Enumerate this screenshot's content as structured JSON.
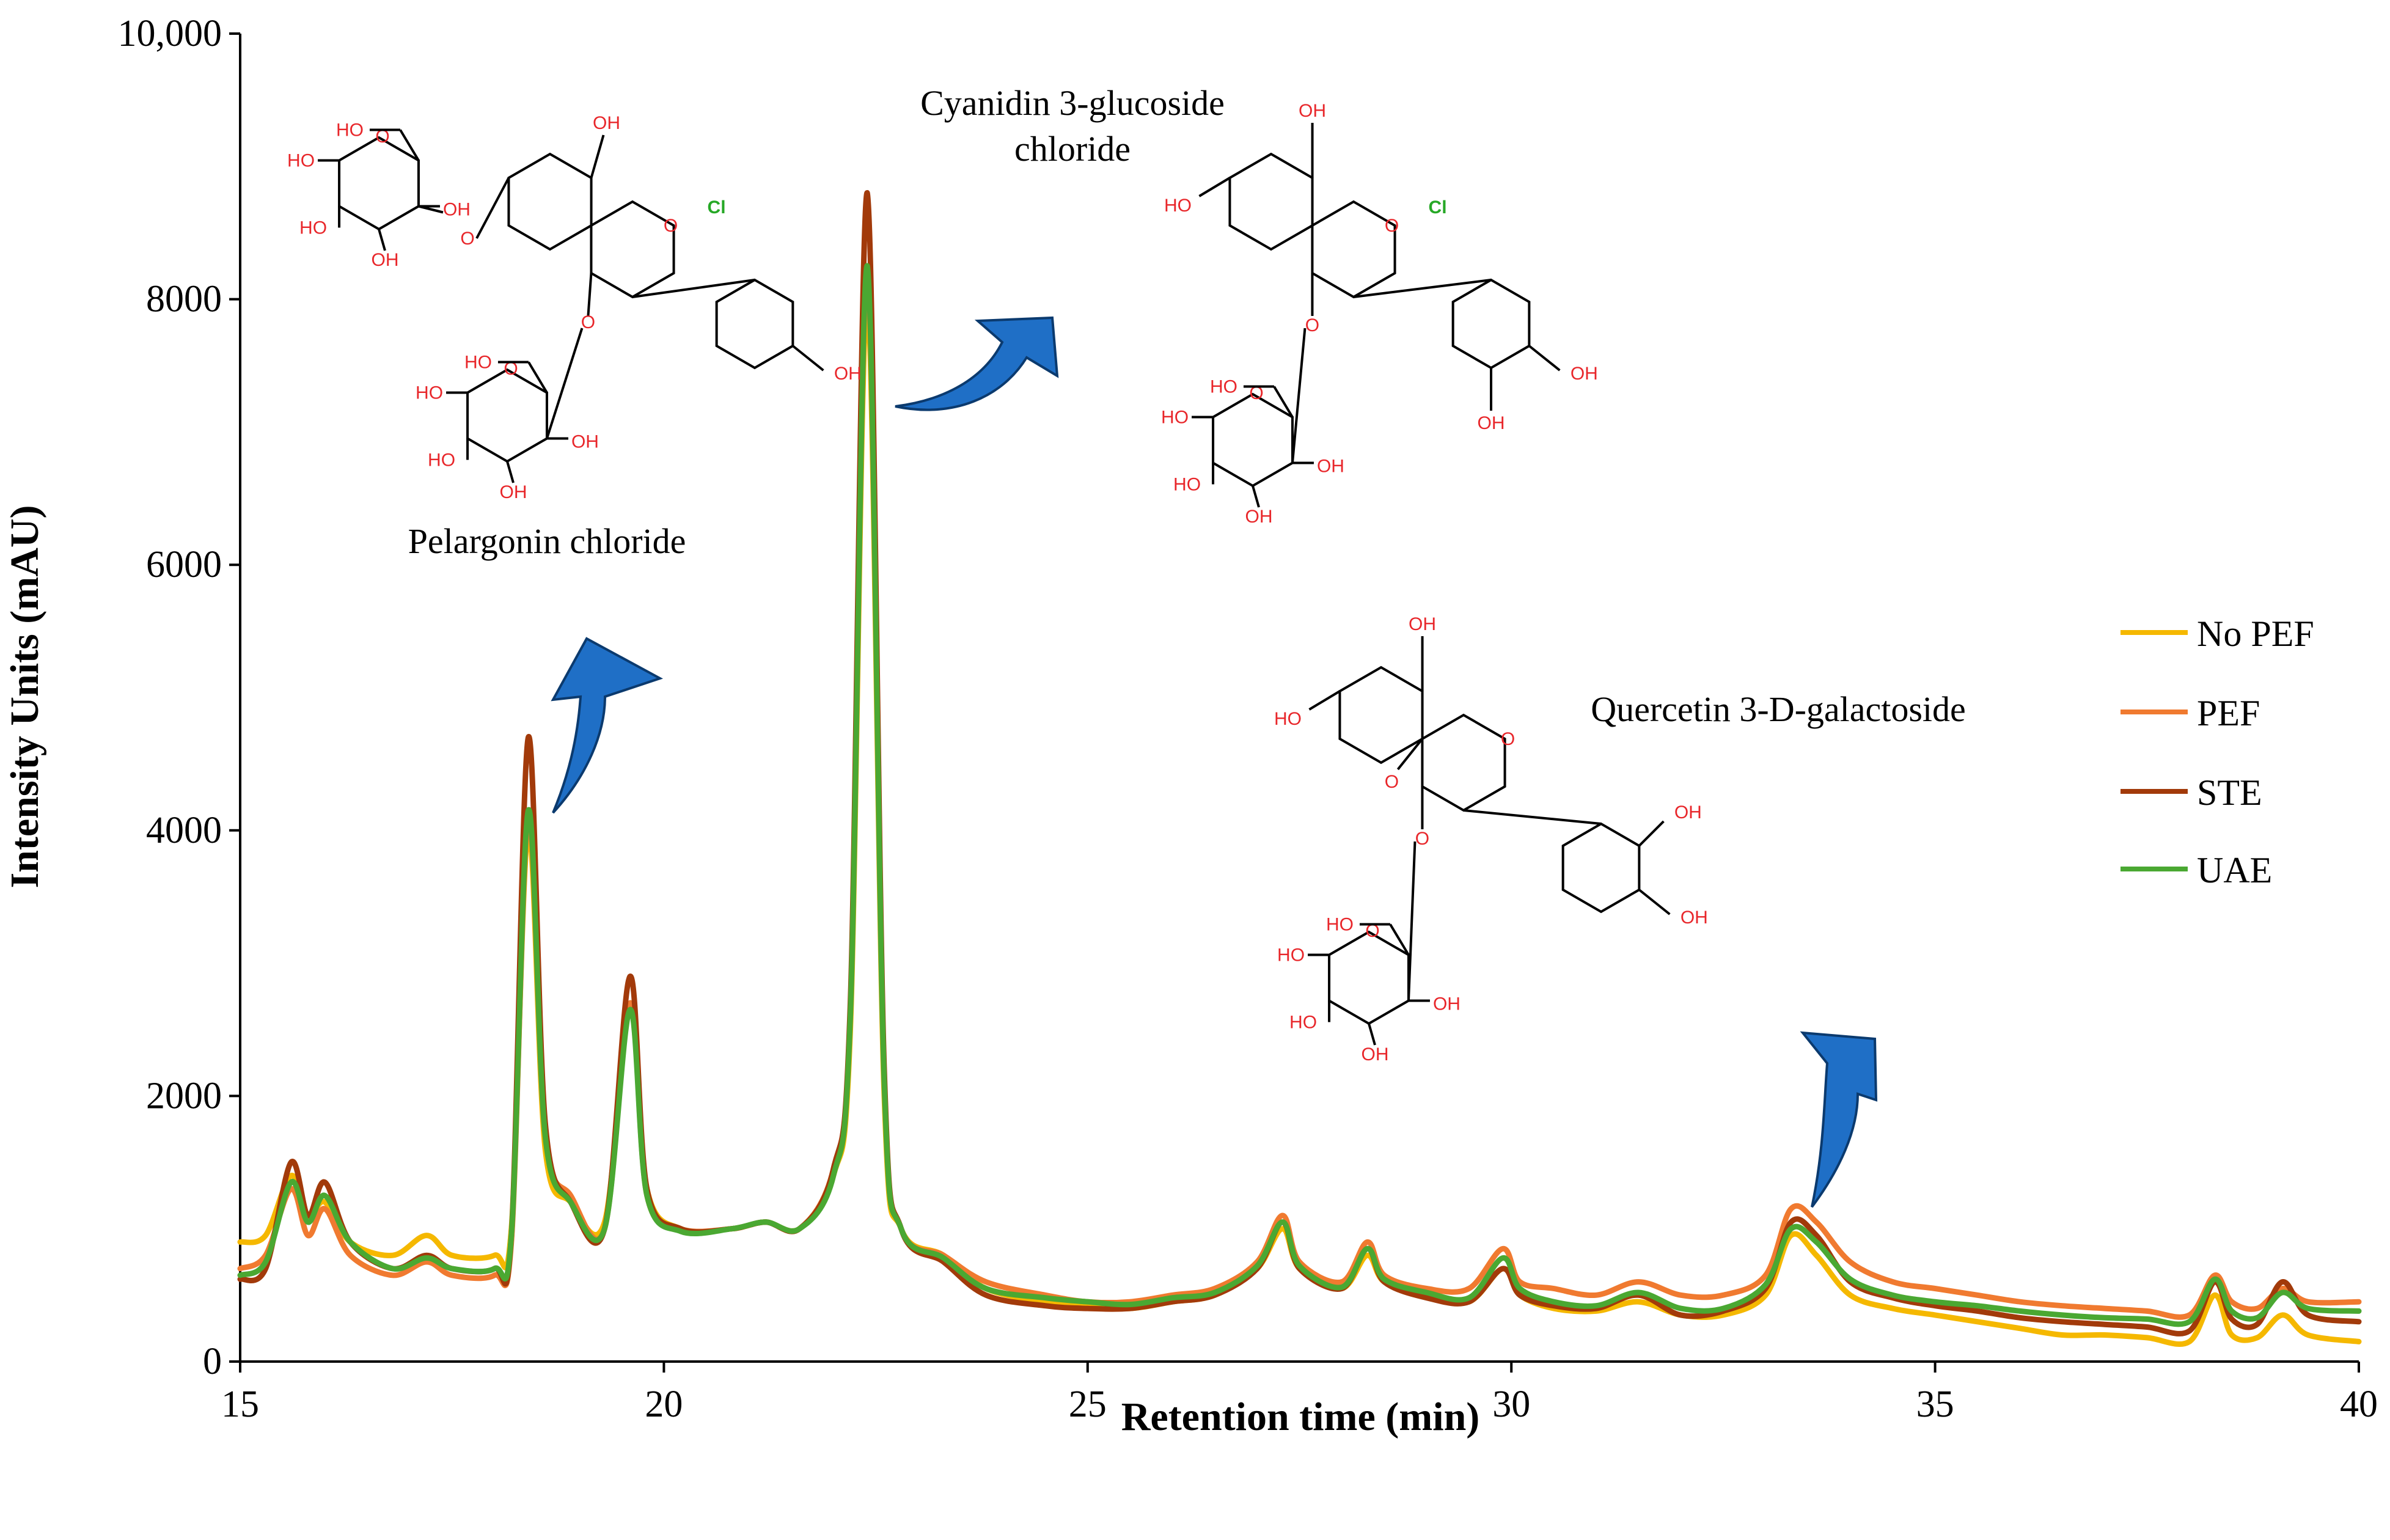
{
  "chart_data": {
    "type": "line",
    "xlabel": "Retention time (min)",
    "ylabel": "Intensity  Units (mAU)",
    "xlim": [
      15,
      40
    ],
    "ylim": [
      0,
      10000
    ],
    "x_ticks": [
      "15",
      "20",
      "25",
      "30",
      "35",
      "40"
    ],
    "y_ticks": [
      "0",
      "2000",
      "4000",
      "6000",
      "8000",
      "10,000"
    ],
    "legend_position": "right",
    "series": [
      {
        "name": "No PEF",
        "color": "#f5b800",
        "points": [
          [
            15,
            900
          ],
          [
            15.3,
            950
          ],
          [
            15.6,
            1400
          ],
          [
            15.8,
            1100
          ],
          [
            16,
            1200
          ],
          [
            16.3,
            900
          ],
          [
            16.8,
            800
          ],
          [
            17.2,
            950
          ],
          [
            17.5,
            800
          ],
          [
            18,
            800
          ],
          [
            18.2,
            1000
          ],
          [
            18.4,
            4000
          ],
          [
            18.6,
            1600
          ],
          [
            18.9,
            1200
          ],
          [
            19.3,
            1050
          ],
          [
            19.6,
            2700
          ],
          [
            19.8,
            1300
          ],
          [
            20.2,
            1000
          ],
          [
            20.8,
            1000
          ],
          [
            21.2,
            1050
          ],
          [
            21.6,
            1000
          ],
          [
            22,
            1400
          ],
          [
            22.2,
            2500
          ],
          [
            22.4,
            8000
          ],
          [
            22.6,
            2000
          ],
          [
            22.8,
            1000
          ],
          [
            23.3,
            800
          ],
          [
            23.8,
            550
          ],
          [
            24.5,
            450
          ],
          [
            25,
            420
          ],
          [
            25.5,
            400
          ],
          [
            26,
            450
          ],
          [
            26.5,
            500
          ],
          [
            27,
            700
          ],
          [
            27.3,
            1000
          ],
          [
            27.5,
            700
          ],
          [
            28,
            550
          ],
          [
            28.3,
            800
          ],
          [
            28.5,
            600
          ],
          [
            29,
            500
          ],
          [
            29.5,
            450
          ],
          [
            29.9,
            700
          ],
          [
            30.1,
            500
          ],
          [
            30.5,
            400
          ],
          [
            31,
            380
          ],
          [
            31.5,
            450
          ],
          [
            32,
            350
          ],
          [
            32.5,
            350
          ],
          [
            33,
            500
          ],
          [
            33.3,
            950
          ],
          [
            33.6,
            800
          ],
          [
            34,
            500
          ],
          [
            34.5,
            400
          ],
          [
            35,
            350
          ],
          [
            35.5,
            300
          ],
          [
            36,
            250
          ],
          [
            36.5,
            200
          ],
          [
            37,
            200
          ],
          [
            37.5,
            180
          ],
          [
            38,
            150
          ],
          [
            38.3,
            500
          ],
          [
            38.5,
            200
          ],
          [
            38.8,
            180
          ],
          [
            39.1,
            350
          ],
          [
            39.4,
            200
          ],
          [
            40,
            150
          ]
        ]
      },
      {
        "name": "PEF",
        "color": "#f07a30",
        "points": [
          [
            15,
            700
          ],
          [
            15.3,
            800
          ],
          [
            15.6,
            1300
          ],
          [
            15.8,
            950
          ],
          [
            16,
            1150
          ],
          [
            16.3,
            800
          ],
          [
            16.8,
            650
          ],
          [
            17.2,
            750
          ],
          [
            17.5,
            650
          ],
          [
            18,
            650
          ],
          [
            18.2,
            900
          ],
          [
            18.4,
            4100
          ],
          [
            18.6,
            1700
          ],
          [
            18.9,
            1250
          ],
          [
            19.3,
            1000
          ],
          [
            19.6,
            2700
          ],
          [
            19.8,
            1250
          ],
          [
            20.2,
            1000
          ],
          [
            20.8,
            1000
          ],
          [
            21.2,
            1050
          ],
          [
            21.6,
            1000
          ],
          [
            22,
            1450
          ],
          [
            22.2,
            2600
          ],
          [
            22.4,
            8200
          ],
          [
            22.6,
            2100
          ],
          [
            22.8,
            1000
          ],
          [
            23.3,
            800
          ],
          [
            23.8,
            600
          ],
          [
            24.5,
            500
          ],
          [
            25,
            450
          ],
          [
            25.5,
            450
          ],
          [
            26,
            500
          ],
          [
            26.5,
            550
          ],
          [
            27,
            750
          ],
          [
            27.3,
            1100
          ],
          [
            27.5,
            750
          ],
          [
            28,
            600
          ],
          [
            28.3,
            900
          ],
          [
            28.5,
            650
          ],
          [
            29,
            550
          ],
          [
            29.5,
            550
          ],
          [
            29.9,
            850
          ],
          [
            30.1,
            600
          ],
          [
            30.5,
            550
          ],
          [
            31,
            500
          ],
          [
            31.5,
            600
          ],
          [
            32,
            500
          ],
          [
            32.5,
            500
          ],
          [
            33,
            650
          ],
          [
            33.3,
            1150
          ],
          [
            33.6,
            1050
          ],
          [
            34,
            750
          ],
          [
            34.5,
            600
          ],
          [
            35,
            550
          ],
          [
            35.5,
            500
          ],
          [
            36,
            450
          ],
          [
            36.5,
            420
          ],
          [
            37,
            400
          ],
          [
            37.5,
            380
          ],
          [
            38,
            350
          ],
          [
            38.3,
            650
          ],
          [
            38.5,
            450
          ],
          [
            38.8,
            400
          ],
          [
            39.1,
            550
          ],
          [
            39.4,
            450
          ],
          [
            40,
            450
          ]
        ]
      },
      {
        "name": "STE",
        "color": "#a23a0a",
        "points": [
          [
            15,
            620
          ],
          [
            15.3,
            700
          ],
          [
            15.6,
            1500
          ],
          [
            15.8,
            1100
          ],
          [
            16,
            1350
          ],
          [
            16.3,
            900
          ],
          [
            16.8,
            700
          ],
          [
            17.2,
            800
          ],
          [
            17.5,
            700
          ],
          [
            18,
            700
          ],
          [
            18.2,
            950
          ],
          [
            18.4,
            4700
          ],
          [
            18.6,
            1800
          ],
          [
            18.9,
            1200
          ],
          [
            19.3,
            1000
          ],
          [
            19.6,
            2900
          ],
          [
            19.8,
            1300
          ],
          [
            20.2,
            1000
          ],
          [
            20.8,
            1000
          ],
          [
            21.2,
            1050
          ],
          [
            21.6,
            1000
          ],
          [
            22,
            1450
          ],
          [
            22.2,
            2700
          ],
          [
            22.4,
            8800
          ],
          [
            22.6,
            2200
          ],
          [
            22.8,
            1000
          ],
          [
            23.3,
            750
          ],
          [
            23.8,
            500
          ],
          [
            24.5,
            420
          ],
          [
            25,
            400
          ],
          [
            25.5,
            400
          ],
          [
            26,
            450
          ],
          [
            26.5,
            500
          ],
          [
            27,
            700
          ],
          [
            27.3,
            1050
          ],
          [
            27.5,
            700
          ],
          [
            28,
            550
          ],
          [
            28.3,
            850
          ],
          [
            28.5,
            600
          ],
          [
            29,
            480
          ],
          [
            29.5,
            450
          ],
          [
            29.9,
            700
          ],
          [
            30.1,
            500
          ],
          [
            30.5,
            420
          ],
          [
            31,
            400
          ],
          [
            31.5,
            500
          ],
          [
            32,
            350
          ],
          [
            32.5,
            380
          ],
          [
            33,
            550
          ],
          [
            33.3,
            1050
          ],
          [
            33.6,
            950
          ],
          [
            34,
            600
          ],
          [
            34.5,
            480
          ],
          [
            35,
            420
          ],
          [
            35.5,
            380
          ],
          [
            36,
            330
          ],
          [
            36.5,
            300
          ],
          [
            37,
            280
          ],
          [
            37.5,
            260
          ],
          [
            38,
            230
          ],
          [
            38.3,
            600
          ],
          [
            38.5,
            320
          ],
          [
            38.8,
            280
          ],
          [
            39.1,
            600
          ],
          [
            39.4,
            350
          ],
          [
            40,
            300
          ]
        ]
      },
      {
        "name": "UAE",
        "color": "#4aa832",
        "points": [
          [
            15,
            650
          ],
          [
            15.3,
            750
          ],
          [
            15.6,
            1350
          ],
          [
            15.8,
            1050
          ],
          [
            16,
            1250
          ],
          [
            16.3,
            900
          ],
          [
            16.8,
            700
          ],
          [
            17.2,
            780
          ],
          [
            17.5,
            700
          ],
          [
            18,
            700
          ],
          [
            18.2,
            950
          ],
          [
            18.4,
            4150
          ],
          [
            18.6,
            1700
          ],
          [
            18.9,
            1200
          ],
          [
            19.3,
            1000
          ],
          [
            19.6,
            2650
          ],
          [
            19.8,
            1250
          ],
          [
            20.2,
            980
          ],
          [
            20.8,
            1000
          ],
          [
            21.2,
            1050
          ],
          [
            21.6,
            1000
          ],
          [
            22,
            1400
          ],
          [
            22.2,
            2600
          ],
          [
            22.4,
            8250
          ],
          [
            22.6,
            2100
          ],
          [
            22.8,
            1000
          ],
          [
            23.3,
            780
          ],
          [
            23.8,
            550
          ],
          [
            24.5,
            480
          ],
          [
            25,
            450
          ],
          [
            25.5,
            430
          ],
          [
            26,
            480
          ],
          [
            26.5,
            520
          ],
          [
            27,
            720
          ],
          [
            27.3,
            1050
          ],
          [
            27.5,
            720
          ],
          [
            28,
            560
          ],
          [
            28.3,
            850
          ],
          [
            28.5,
            620
          ],
          [
            29,
            520
          ],
          [
            29.5,
            480
          ],
          [
            29.9,
            780
          ],
          [
            30.1,
            550
          ],
          [
            30.5,
            450
          ],
          [
            31,
            420
          ],
          [
            31.5,
            520
          ],
          [
            32,
            400
          ],
          [
            32.5,
            400
          ],
          [
            33,
            580
          ],
          [
            33.3,
            1000
          ],
          [
            33.6,
            900
          ],
          [
            34,
            620
          ],
          [
            34.5,
            500
          ],
          [
            35,
            450
          ],
          [
            35.5,
            420
          ],
          [
            36,
            380
          ],
          [
            36.5,
            350
          ],
          [
            37,
            330
          ],
          [
            37.5,
            320
          ],
          [
            38,
            300
          ],
          [
            38.3,
            620
          ],
          [
            38.5,
            380
          ],
          [
            38.8,
            330
          ],
          [
            39.1,
            520
          ],
          [
            39.4,
            400
          ],
          [
            40,
            380
          ]
        ]
      }
    ],
    "annotations": [
      {
        "id": "pelargonin",
        "text": "Pelargonin chloride",
        "peak_x": 18.4
      },
      {
        "id": "cyanidin",
        "text_lines": [
          "Cyanidin 3-glucoside",
          "chloride"
        ],
        "peak_x": 22.4
      },
      {
        "id": "quercetin",
        "text": "Quercetin 3-D-galactoside",
        "peak_x": 33.3
      }
    ]
  },
  "molecules": {
    "oh_label": "OH",
    "ho_label": "HO",
    "o_label": "O",
    "cl_label": "Cl"
  }
}
